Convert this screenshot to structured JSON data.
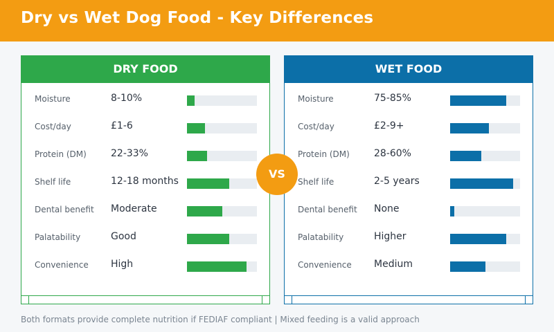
{
  "title": "Dry vs Wet Dog Food - Key Differences",
  "vs_label": "VS",
  "footnote": "Both formats provide complete nutrition if FEDIAF compliant | Mixed feeding is a valid approach",
  "colors": {
    "header": "#f39c12",
    "dry": "#2ea84a",
    "wet": "#0c6fa8",
    "track": "#e9edf1"
  },
  "chart_data": {
    "type": "bar",
    "orientation": "horizontal",
    "value_scale": [
      0,
      1
    ],
    "panels": [
      {
        "name": "DRY FOOD",
        "rows": [
          {
            "label": "Moisture",
            "value_text": "8-10%",
            "fill": 0.11
          },
          {
            "label": "Cost/day",
            "value_text": "£1-6",
            "fill": 0.26
          },
          {
            "label": "Protein (DM)",
            "value_text": "22-33%",
            "fill": 0.29
          },
          {
            "label": "Shelf life",
            "value_text": "12-18 months",
            "fill": 0.6
          },
          {
            "label": "Dental benefit",
            "value_text": "Moderate",
            "fill": 0.5
          },
          {
            "label": "Palatability",
            "value_text": "Good",
            "fill": 0.6
          },
          {
            "label": "Convenience",
            "value_text": "High",
            "fill": 0.85
          }
        ]
      },
      {
        "name": "WET FOOD",
        "rows": [
          {
            "label": "Moisture",
            "value_text": "75-85%",
            "fill": 0.8
          },
          {
            "label": "Cost/day",
            "value_text": "£2-9+",
            "fill": 0.55
          },
          {
            "label": "Protein (DM)",
            "value_text": "28-60%",
            "fill": 0.45
          },
          {
            "label": "Shelf life",
            "value_text": "2-5 years",
            "fill": 0.9
          },
          {
            "label": "Dental benefit",
            "value_text": "None",
            "fill": 0.06
          },
          {
            "label": "Palatability",
            "value_text": "Higher",
            "fill": 0.8
          },
          {
            "label": "Convenience",
            "value_text": "Medium",
            "fill": 0.5
          }
        ]
      }
    ]
  }
}
